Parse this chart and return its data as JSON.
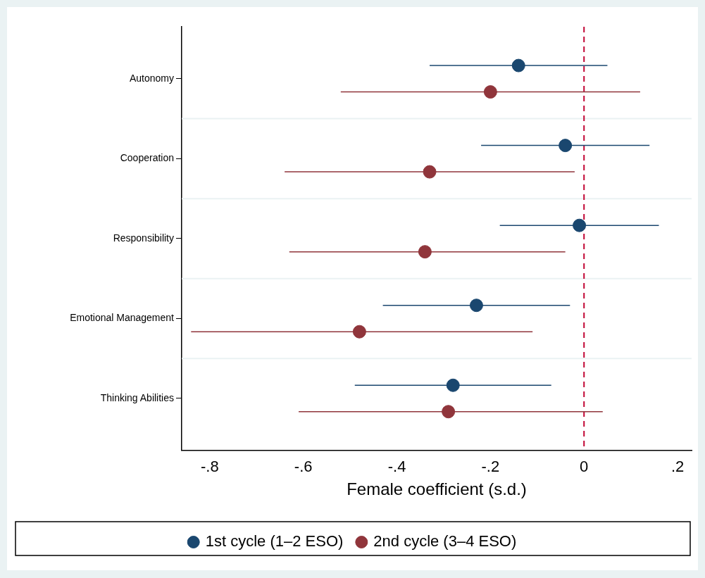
{
  "chart_data": {
    "type": "scatter",
    "orientation": "horizontal",
    "xlabel": "Female coefficient (s.d.)",
    "categories": [
      "Autonomy",
      "Cooperation",
      "Responsibility",
      "Emotional Management",
      "Thinking Abilities"
    ],
    "series": [
      {
        "name": "1st cycle (1–2 ESO)",
        "color": "#1a476f",
        "values": [
          -0.14,
          -0.04,
          -0.01,
          -0.23,
          -0.28
        ],
        "errors": [
          [
            -0.33,
            0.05
          ],
          [
            -0.22,
            0.14
          ],
          [
            -0.18,
            0.16
          ],
          [
            -0.43,
            -0.03
          ],
          [
            -0.49,
            -0.07
          ]
        ]
      },
      {
        "name": "2nd cycle (3–4 ESO)",
        "color": "#90353b",
        "values": [
          -0.2,
          -0.33,
          -0.34,
          -0.48,
          -0.29
        ],
        "errors": [
          [
            -0.52,
            0.12
          ],
          [
            -0.64,
            -0.02
          ],
          [
            -0.63,
            -0.04
          ],
          [
            -0.84,
            -0.11
          ],
          [
            -0.61,
            0.04
          ]
        ]
      }
    ],
    "xlim": [
      -0.86,
      0.23
    ],
    "xticks": [
      {
        "value": -0.8,
        "label": "-.8"
      },
      {
        "value": -0.6,
        "label": "-.6"
      },
      {
        "value": -0.4,
        "label": "-.4"
      },
      {
        "value": -0.2,
        "label": "-.2"
      },
      {
        "value": 0,
        "label": "0"
      },
      {
        "value": 0.2,
        "label": ".2"
      }
    ],
    "ref_lines": [
      {
        "axis": "x",
        "value": 0,
        "color": "#c10534",
        "line_style": "dashed"
      }
    ],
    "grid": "y",
    "legend": "bottom",
    "marker": "circle"
  }
}
